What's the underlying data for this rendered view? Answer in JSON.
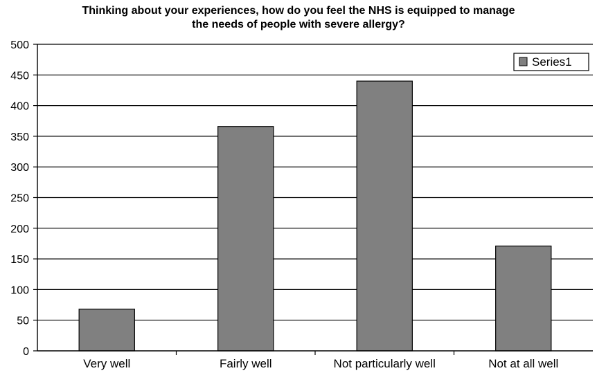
{
  "chart_data": {
    "type": "bar",
    "title_lines": [
      "Thinking about your experiences, how do you feel the NHS is equipped to manage",
      "the needs of people with severe allergy?"
    ],
    "categories": [
      "Very well",
      "Fairly well",
      "Not particularly well",
      "Not at all well"
    ],
    "series": [
      {
        "name": "Series1",
        "values": [
          68,
          366,
          440,
          171
        ]
      }
    ],
    "ylim": [
      0,
      500
    ],
    "yticks": [
      "0",
      "50",
      "100",
      "150",
      "200",
      "250",
      "300",
      "350",
      "400",
      "450",
      "500"
    ],
    "grid": true,
    "legend_position": "top-right",
    "colors": {
      "bar_fill": "#808080",
      "bar_stroke": "#000000",
      "gridline": "#000000",
      "axis": "#000000",
      "background": "#ffffff"
    }
  }
}
